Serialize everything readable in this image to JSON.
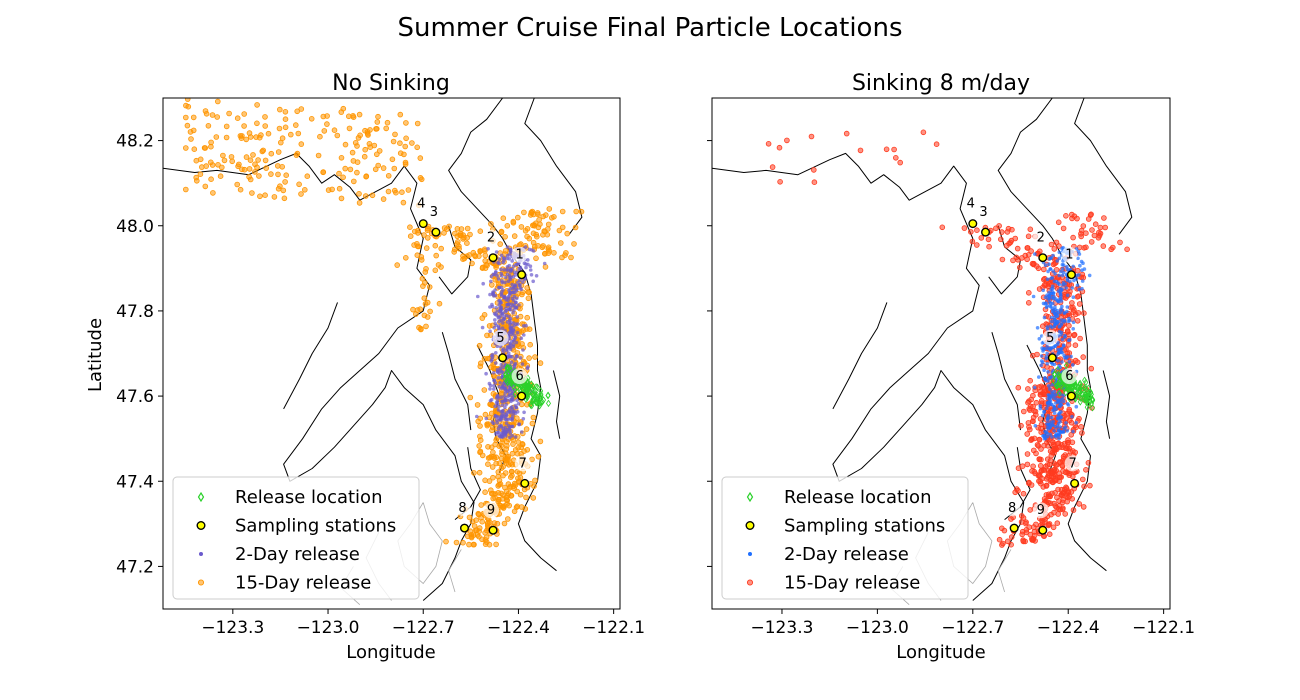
{
  "figure": {
    "suptitle": "Summer Cruise Final Particle Locations"
  },
  "colors": {
    "release": "#2bd12b",
    "station_fill": "#ffff00",
    "two_day_no_sink": "#6a5acd",
    "fifteen_day_no_sink": "#ff9500",
    "two_day_sink": "#1f6fff",
    "fifteen_day_sink": "#ff3b1f"
  },
  "chart_data": [
    {
      "type": "scatter",
      "title": "No Sinking",
      "xlabel": "Longitude",
      "ylabel": "Latitude",
      "xlim": [
        -123.52,
        -122.08
      ],
      "ylim": [
        47.1,
        48.3
      ],
      "xticks": [
        -123.3,
        -123.0,
        -122.7,
        -122.4,
        -122.1
      ],
      "xtick_labels": [
        "−123.3",
        "−123.0",
        "−122.7",
        "−122.4",
        "−122.1"
      ],
      "yticks": [
        47.2,
        47.4,
        47.6,
        47.8,
        48.0,
        48.2
      ],
      "ytick_labels": [
        "47.2",
        "47.4",
        "47.6",
        "47.8",
        "48.0",
        "48.2"
      ],
      "legend_position": "lower-left",
      "legend": [
        "Release location",
        "Sampling stations",
        "2-Day release",
        "15-Day release"
      ],
      "stations": [
        {
          "id": "1",
          "lon": -122.39,
          "lat": 47.885
        },
        {
          "id": "2",
          "lon": -122.48,
          "lat": 47.925
        },
        {
          "id": "3",
          "lon": -122.66,
          "lat": 47.985
        },
        {
          "id": "4",
          "lon": -122.7,
          "lat": 48.005
        },
        {
          "id": "5",
          "lon": -122.45,
          "lat": 47.69
        },
        {
          "id": "6",
          "lon": -122.39,
          "lat": 47.6
        },
        {
          "id": "7",
          "lon": -122.38,
          "lat": 47.395
        },
        {
          "id": "8",
          "lon": -122.57,
          "lat": 47.29
        },
        {
          "id": "9",
          "lon": -122.48,
          "lat": 47.285
        }
      ]
    },
    {
      "type": "scatter",
      "title": "Sinking 8 m/day",
      "xlabel": "Longitude",
      "ylabel": "",
      "xlim": [
        -123.52,
        -122.08
      ],
      "ylim": [
        47.1,
        48.3
      ],
      "xticks": [
        -123.3,
        -123.0,
        -122.7,
        -122.4,
        -122.1
      ],
      "xtick_labels": [
        "−123.3",
        "−123.0",
        "−122.7",
        "−122.4",
        "−122.1"
      ],
      "yticks": [
        47.2,
        47.4,
        47.6,
        47.8,
        48.0,
        48.2
      ],
      "legend_position": "lower-left",
      "legend": [
        "Release location",
        "Sampling stations",
        "2-Day release",
        "15-Day release"
      ],
      "stations": [
        {
          "id": "1",
          "lon": -122.39,
          "lat": 47.885
        },
        {
          "id": "2",
          "lon": -122.48,
          "lat": 47.925
        },
        {
          "id": "3",
          "lon": -122.66,
          "lat": 47.985
        },
        {
          "id": "4",
          "lon": -122.7,
          "lat": 48.005
        },
        {
          "id": "5",
          "lon": -122.45,
          "lat": 47.69
        },
        {
          "id": "6",
          "lon": -122.39,
          "lat": 47.6
        },
        {
          "id": "7",
          "lon": -122.38,
          "lat": 47.395
        },
        {
          "id": "8",
          "lon": -122.57,
          "lat": 47.29
        },
        {
          "id": "9",
          "lon": -122.48,
          "lat": 47.285
        }
      ]
    }
  ]
}
